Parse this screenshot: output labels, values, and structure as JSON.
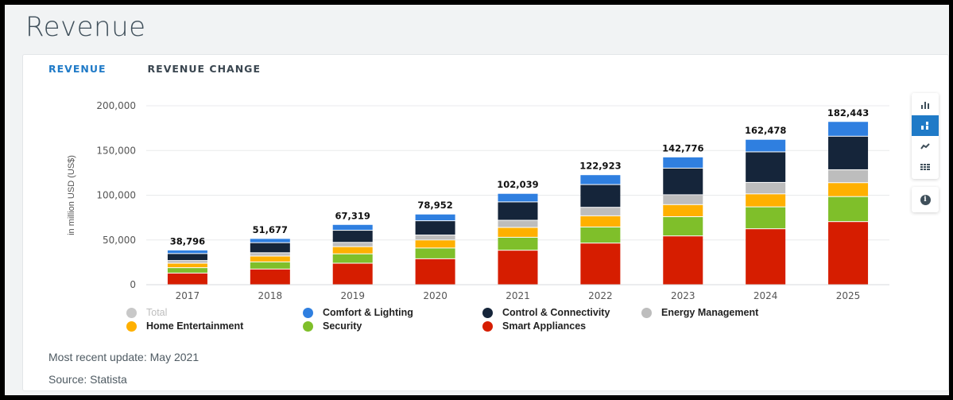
{
  "page": {
    "title": "Revenue"
  },
  "tabs": [
    {
      "label": "REVENUE"
    },
    {
      "label": "REVENUE CHANGE"
    }
  ],
  "toolbar": {
    "icons": [
      "bar-chart-icon",
      "stacked-bar-icon",
      "line-chart-icon",
      "table-icon",
      "info-icon"
    ],
    "active": "stacked-bar-icon",
    "info_glyph": "i"
  },
  "footer": {
    "update": "Most recent update: May 2021",
    "source": "Source: Statista"
  },
  "colors": {
    "accent": "#1f7ac7",
    "total": "#c8c8c8",
    "comfort": "#2f7fe0",
    "control": "#15253a",
    "energy": "#bdbdbd",
    "home": "#ffb000",
    "security": "#7fbf2a",
    "smart": "#d61d00"
  },
  "chart_data": {
    "type": "bar",
    "stacked": true,
    "ylabel": "in million USD (US$)",
    "ylim": [
      0,
      200000
    ],
    "yticks": [
      "0",
      "50,000",
      "100,000",
      "150,000",
      "200,000"
    ],
    "categories": [
      "2017",
      "2018",
      "2019",
      "2020",
      "2021",
      "2022",
      "2023",
      "2024",
      "2025"
    ],
    "totals": [
      "38,796",
      "51,677",
      "67,319",
      "78,952",
      "102,039",
      "122,923",
      "142,776",
      "162,478",
      "182,443"
    ],
    "legend": [
      {
        "name": "Total",
        "color": "#c8c8c8",
        "muted": true
      },
      {
        "name": "Comfort & Lighting",
        "color": "#2f7fe0"
      },
      {
        "name": "Control & Connectivity",
        "color": "#15253a"
      },
      {
        "name": "Energy Management",
        "color": "#bdbdbd"
      },
      {
        "name": "Home Entertainment",
        "color": "#ffb000"
      },
      {
        "name": "Security",
        "color": "#7fbf2a"
      },
      {
        "name": "Smart Appliances",
        "color": "#d61d00"
      }
    ],
    "series": [
      {
        "name": "Smart Appliances",
        "color": "#d61d00",
        "values": [
          13000,
          17500,
          24000,
          29000,
          38500,
          46500,
          54500,
          62500,
          70500
        ]
      },
      {
        "name": "Security",
        "color": "#7fbf2a",
        "values": [
          6000,
          8000,
          10500,
          12000,
          14500,
          18000,
          21500,
          24500,
          28000
        ]
      },
      {
        "name": "Home Entertainment",
        "color": "#ffb000",
        "values": [
          5000,
          6500,
          8000,
          9000,
          11000,
          12500,
          13500,
          14500,
          15500
        ]
      },
      {
        "name": "Energy Management",
        "color": "#bdbdbd",
        "values": [
          3000,
          3700,
          4800,
          5500,
          8000,
          9500,
          11000,
          12800,
          14500
        ]
      },
      {
        "name": "Control & Connectivity",
        "color": "#15253a",
        "values": [
          7800,
          11277,
          13519,
          15952,
          20539,
          25423,
          29776,
          34178,
          37443
        ]
      },
      {
        "name": "Comfort & Lighting",
        "color": "#2f7fe0",
        "values": [
          3996,
          4700,
          6500,
          7500,
          9500,
          11000,
          12500,
          14000,
          16500
        ]
      }
    ]
  }
}
